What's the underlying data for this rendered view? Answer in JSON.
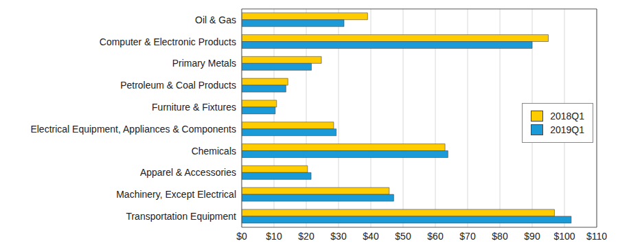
{
  "chart_data": {
    "type": "bar",
    "orientation": "horizontal",
    "categories": [
      "Oil & Gas",
      "Computer & Electronic Products",
      "Primary Metals",
      "Petroleum & Coal Products",
      "Furniture & Fixtures",
      "Electrical Equipment, Appliances & Components",
      "Chemicals",
      "Apparel & Accessories",
      "Machinery, Except Electrical",
      "Transportation Equipment"
    ],
    "series": [
      {
        "name": "2018Q1",
        "color": "#ffcc00",
        "values": [
          39,
          95,
          24.7,
          14.3,
          10.8,
          28.5,
          63,
          20.4,
          45.7,
          96.9
        ]
      },
      {
        "name": "2019Q1",
        "color": "#1a9ad6",
        "values": [
          31.7,
          90,
          21.6,
          13.7,
          10.4,
          29.3,
          63.9,
          21.5,
          47.1,
          102.1
        ]
      }
    ],
    "xlim": [
      0,
      110
    ],
    "xticks": [
      {
        "value": 0,
        "label": "$0"
      },
      {
        "value": 10,
        "label": "$10"
      },
      {
        "value": 20,
        "label": "$20"
      },
      {
        "value": 30,
        "label": "$30"
      },
      {
        "value": 40,
        "label": "$40"
      },
      {
        "value": 50,
        "label": "$50"
      },
      {
        "value": 60,
        "label": "$60"
      },
      {
        "value": 70,
        "label": "$70"
      },
      {
        "value": 80,
        "label": "$80"
      },
      {
        "value": 90,
        "label": "$90"
      },
      {
        "value": 100,
        "label": "$100"
      },
      {
        "value": 110,
        "label": "$110"
      }
    ],
    "grid": true,
    "legend": "right"
  }
}
